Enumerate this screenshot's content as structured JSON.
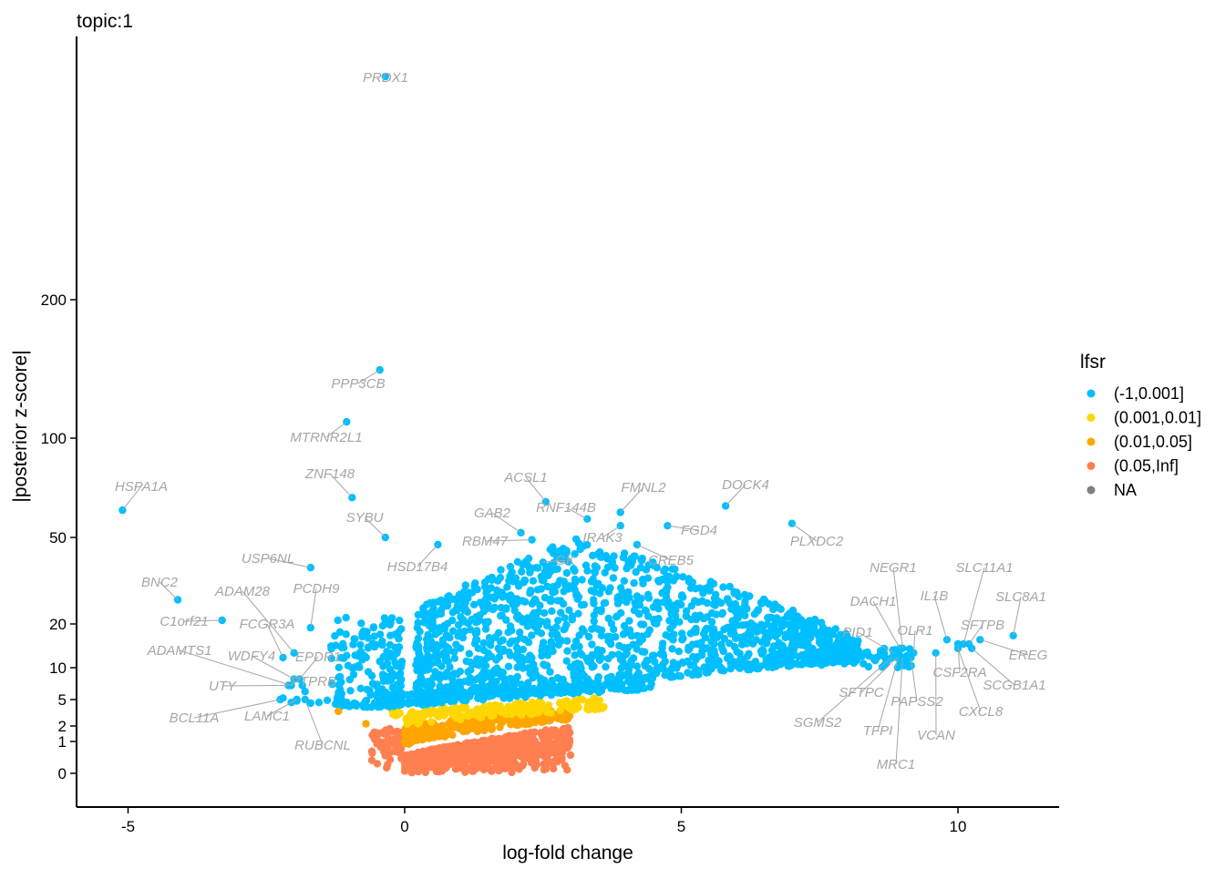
{
  "chart_data": {
    "type": "scatter",
    "title": "topic:1",
    "xlabel": "log-fold change",
    "ylabel": "|posterior z-score|",
    "x_ticks": [
      -5,
      0,
      5,
      10
    ],
    "y_ticks": [
      0,
      1,
      2,
      5,
      10,
      20,
      50,
      100,
      200
    ],
    "xlim": [
      -6.0,
      11.8
    ],
    "y_scale": "sqrt",
    "ylim": [
      0,
      600
    ],
    "grid": false,
    "legend": {
      "title": "lfsr",
      "position": "right",
      "entries": [
        {
          "label": "(-1,0.001]",
          "color": "#00bfff"
        },
        {
          "label": "(0.001,0.01]",
          "color": "#ffd700"
        },
        {
          "label": "(0.01,0.05]",
          "color": "#ffa500"
        },
        {
          "label": "(0.05,Inf]",
          "color": "#ff7f50"
        },
        {
          "label": "NA",
          "color": "#808080"
        }
      ]
    },
    "labeled_points": [
      {
        "gene": "PRDX1",
        "x": -0.35,
        "y": 580
      },
      {
        "gene": "PPP3CB",
        "x": -0.45,
        "y": 145
      },
      {
        "gene": "MTRNR2L1",
        "x": -1.05,
        "y": 110
      },
      {
        "gene": "ZNF148",
        "x": -0.95,
        "y": 68
      },
      {
        "gene": "HSPA1A",
        "x": -5.1,
        "y": 62
      },
      {
        "gene": "SYBU",
        "x": -0.35,
        "y": 50
      },
      {
        "gene": "USP6NL",
        "x": -1.7,
        "y": 38
      },
      {
        "gene": "HSD17B4",
        "x": 0.6,
        "y": 47
      },
      {
        "gene": "BNC2",
        "x": -4.1,
        "y": 27
      },
      {
        "gene": "ADAM28",
        "x": -2.0,
        "y": 13
      },
      {
        "gene": "PCDH9",
        "x": -1.7,
        "y": 19
      },
      {
        "gene": "C1orf21",
        "x": -3.3,
        "y": 21
      },
      {
        "gene": "FCGR3A",
        "x": -2.2,
        "y": 12
      },
      {
        "gene": "ADAMTS1",
        "x": -2.05,
        "y": 7
      },
      {
        "gene": "WDFY4",
        "x": -2.0,
        "y": 8
      },
      {
        "gene": "EPDR1",
        "x": -1.9,
        "y": 8
      },
      {
        "gene": "UTY",
        "x": -2.1,
        "y": 7
      },
      {
        "gene": "PTPRB",
        "x": -1.85,
        "y": 7
      },
      {
        "gene": "BCL11A",
        "x": -2.25,
        "y": 5
      },
      {
        "gene": "LAMC1",
        "x": -1.95,
        "y": 5
      },
      {
        "gene": "RUBCNL",
        "x": -1.8,
        "y": 5
      },
      {
        "gene": "ACSL1",
        "x": 2.55,
        "y": 66
      },
      {
        "gene": "GAB2",
        "x": 2.1,
        "y": 52
      },
      {
        "gene": "RNF144B",
        "x": 3.3,
        "y": 58
      },
      {
        "gene": "RBM47",
        "x": 2.3,
        "y": 49
      },
      {
        "gene": "GK",
        "x": 2.5,
        "y": 40
      },
      {
        "gene": "FMNL2",
        "x": 3.9,
        "y": 61
      },
      {
        "gene": "IRAK3",
        "x": 3.9,
        "y": 55
      },
      {
        "gene": "CREB5",
        "x": 4.2,
        "y": 47
      },
      {
        "gene": "FGD4",
        "x": 4.75,
        "y": 55
      },
      {
        "gene": "DOCK4",
        "x": 5.8,
        "y": 64
      },
      {
        "gene": "PLXDC2",
        "x": 7.0,
        "y": 56
      },
      {
        "gene": "NEGR1",
        "x": 9.0,
        "y": 14
      },
      {
        "gene": "DACH1",
        "x": 8.95,
        "y": 14
      },
      {
        "gene": "IL1B",
        "x": 9.8,
        "y": 16
      },
      {
        "gene": "SLC11A1",
        "x": 10.1,
        "y": 15
      },
      {
        "gene": "SLC8A1",
        "x": 11.0,
        "y": 17
      },
      {
        "gene": "SFTPB",
        "x": 10.2,
        "y": 15
      },
      {
        "gene": "PID1",
        "x": 8.85,
        "y": 13
      },
      {
        "gene": "OLR1",
        "x": 9.2,
        "y": 13
      },
      {
        "gene": "EREG",
        "x": 10.4,
        "y": 16
      },
      {
        "gene": "CSF2RA",
        "x": 10.0,
        "y": 15
      },
      {
        "gene": "SFTPC",
        "x": 8.9,
        "y": 12
      },
      {
        "gene": "PAPSS2",
        "x": 9.15,
        "y": 12
      },
      {
        "gene": "SCGB1A1",
        "x": 10.25,
        "y": 14
      },
      {
        "gene": "SGMS2",
        "x": 8.8,
        "y": 12
      },
      {
        "gene": "TFPI",
        "x": 8.92,
        "y": 12
      },
      {
        "gene": "CXCL8",
        "x": 10.0,
        "y": 14
      },
      {
        "gene": "VCAN",
        "x": 9.6,
        "y": 13
      },
      {
        "gene": "MRC1",
        "x": 9.0,
        "y": 12
      }
    ]
  }
}
